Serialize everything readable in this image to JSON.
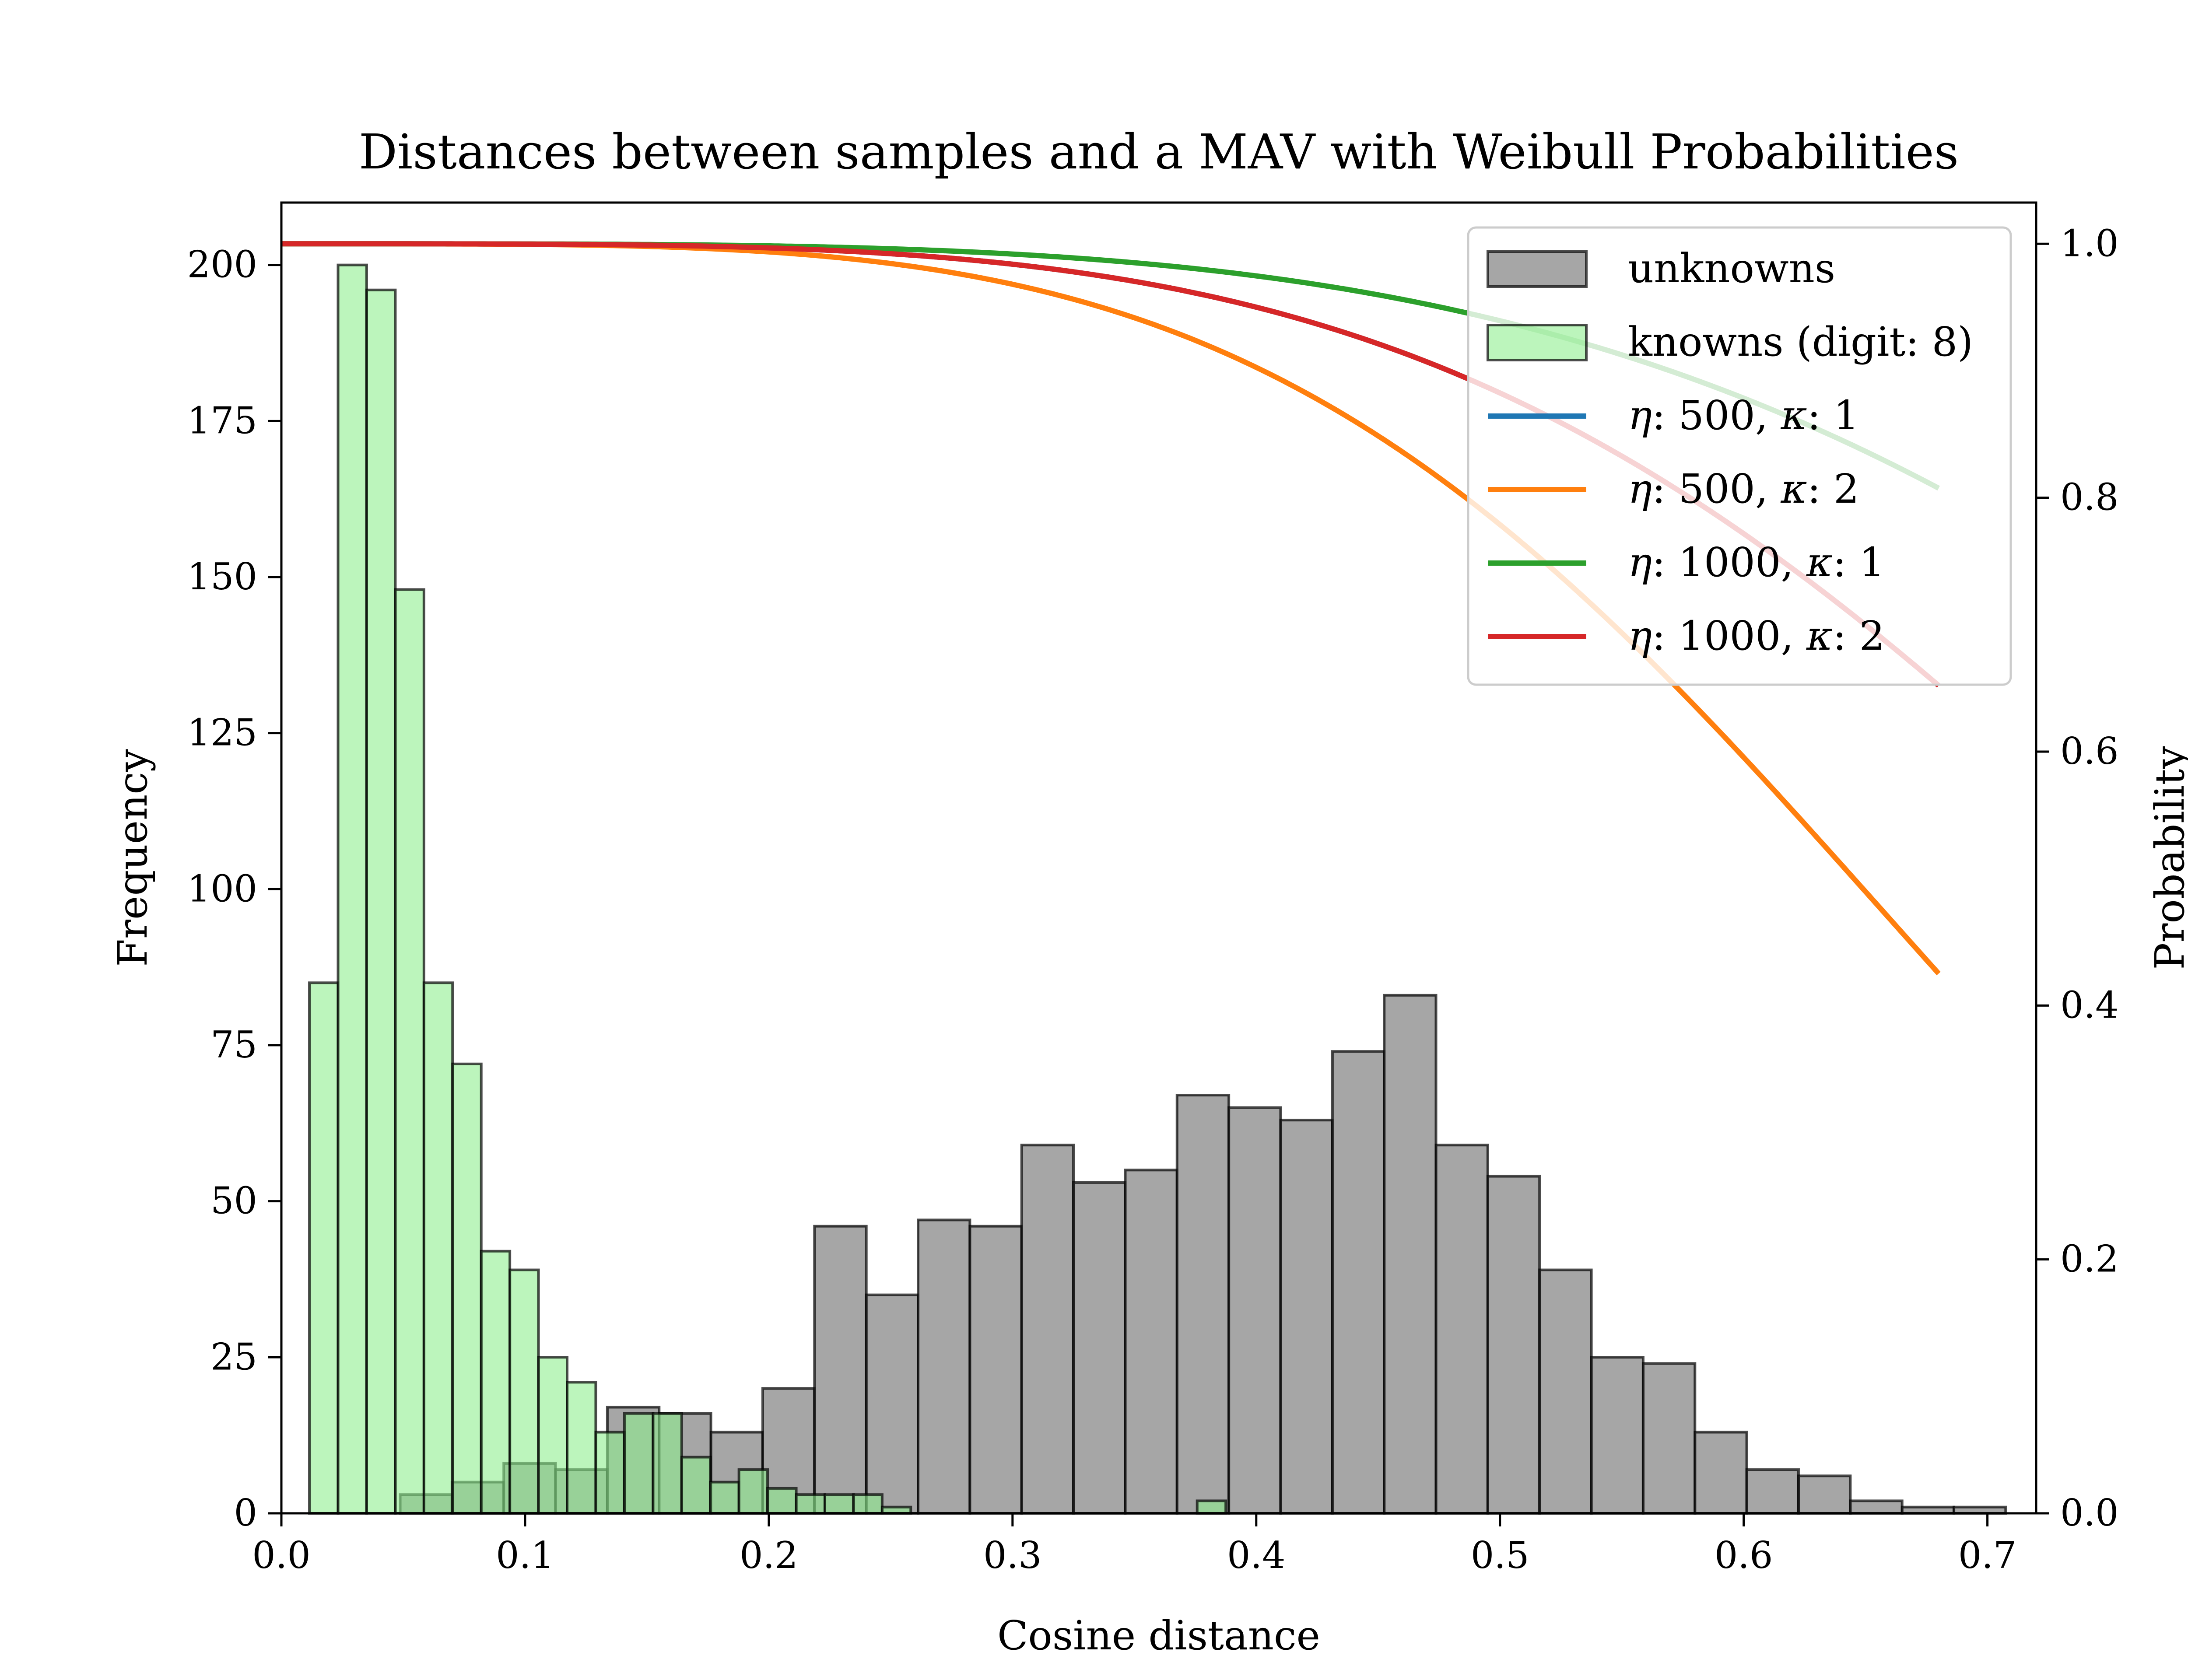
{
  "chart_data": {
    "type": "bar",
    "title": "Distances between samples and a MAV with Weibull Probabilities",
    "xlabel": "Cosine distance",
    "ylabel": "Frequency",
    "y2label": "Probability",
    "xlim": [
      0,
      0.72
    ],
    "ylim": [
      0,
      210
    ],
    "y2lim": [
      0,
      1.0325
    ],
    "xticks": [
      "0.0",
      "0.1",
      "0.2",
      "0.3",
      "0.4",
      "0.5",
      "0.6",
      "0.7"
    ],
    "xtick_values": [
      0,
      0.1,
      0.2,
      0.3,
      0.4,
      0.5,
      0.6,
      0.7
    ],
    "yticks": [
      "0",
      "25",
      "50",
      "75",
      "100",
      "125",
      "150",
      "175",
      "200"
    ],
    "ytick_values": [
      0,
      25,
      50,
      75,
      100,
      125,
      150,
      175,
      200
    ],
    "y2ticks": [
      "0.0",
      "0.2",
      "0.4",
      "0.6",
      "0.8",
      "1.0"
    ],
    "y2tick_values": [
      0,
      0.2,
      0.4,
      0.6,
      0.8,
      1.0
    ],
    "legend_position": "top-right",
    "histograms": [
      {
        "name": "unknowns",
        "color": "#808080",
        "opacity": 0.7,
        "edge_color": "#000000",
        "bin_start": 0.0275,
        "bin_width": 0.02125,
        "counts": [
          0,
          3,
          5,
          8,
          7,
          17,
          16,
          13,
          20,
          46,
          35,
          47,
          46,
          59,
          53,
          55,
          67,
          65,
          63,
          74,
          83,
          59,
          54,
          39,
          25,
          24,
          13,
          7,
          6,
          2,
          1,
          1
        ]
      },
      {
        "name": "knowns (digit: 8)",
        "color": "#90ee90",
        "opacity": 0.6,
        "edge_color": "#000000",
        "bin_start": 0.0115,
        "bin_width": 0.01175,
        "counts": [
          85,
          200,
          196,
          148,
          85,
          72,
          42,
          39,
          25,
          21,
          13,
          16,
          16,
          9,
          5,
          7,
          4,
          3,
          3,
          3,
          1,
          0,
          0,
          0,
          0,
          0,
          0,
          0,
          0,
          0,
          0,
          2
        ]
      }
    ],
    "curves": [
      {
        "name": "η: 500, κ: 1",
        "label_prefix": "η",
        "label_mid": ": 500, ",
        "label_k": "κ",
        "label_end": ": 1",
        "eta": 500,
        "kappa": 1,
        "color": "#1f77b4"
      },
      {
        "name": "η: 500, κ: 2",
        "label_prefix": "η",
        "label_mid": ": 500, ",
        "label_k": "κ",
        "label_end": ": 2",
        "eta": 500,
        "kappa": 2,
        "color": "#ff7f0e"
      },
      {
        "name": "η: 1000, κ: 1",
        "label_prefix": "η",
        "label_mid": ": 1000, ",
        "label_k": "κ",
        "label_end": ": 1",
        "eta": 1000,
        "kappa": 1,
        "color": "#2ca02c"
      },
      {
        "name": "η: 1000, κ: 2",
        "label_prefix": "η",
        "label_mid": ": 1000, ",
        "label_k": "κ",
        "label_end": ": 2",
        "eta": 1000,
        "kappa": 2,
        "color": "#d62728"
      }
    ],
    "curve_params": {
      "x_max": 0.68
    }
  }
}
